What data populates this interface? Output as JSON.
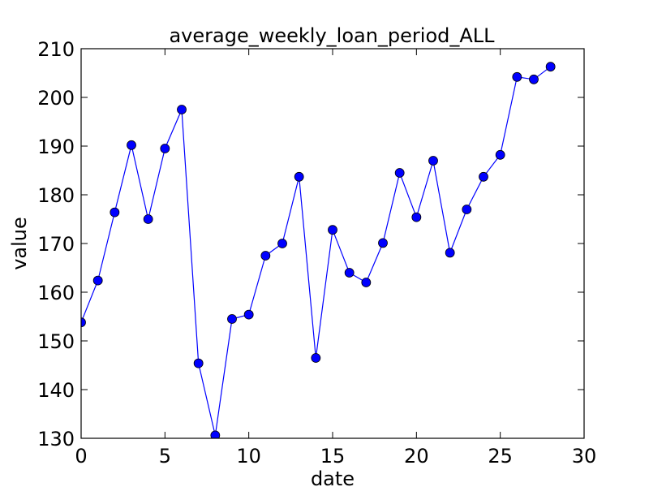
{
  "chart_data": {
    "type": "line",
    "title": "average_weekly_loan_period_ALL",
    "xlabel": "date",
    "ylabel": "value",
    "xlim": [
      0,
      30
    ],
    "ylim": [
      130,
      210
    ],
    "xticks": [
      0,
      5,
      10,
      15,
      20,
      25,
      30
    ],
    "yticks": [
      130,
      140,
      150,
      160,
      170,
      180,
      190,
      200,
      210
    ],
    "grid": false,
    "legend": "none",
    "series": [
      {
        "color": "#0000ff",
        "marker": "circle",
        "x": [
          0,
          1,
          2,
          3,
          4,
          5,
          6,
          7,
          8,
          9,
          10,
          11,
          12,
          13,
          14,
          15,
          16,
          17,
          18,
          19,
          20,
          21,
          22,
          23,
          24,
          25,
          26,
          27,
          28
        ],
        "y": [
          153.8,
          162.4,
          176.4,
          190.2,
          175.0,
          189.5,
          197.5,
          145.4,
          130.6,
          154.5,
          155.4,
          167.5,
          170.0,
          183.7,
          146.5,
          172.8,
          164.0,
          162.0,
          170.1,
          184.5,
          175.4,
          187.0,
          168.1,
          177.0,
          183.7,
          188.2,
          204.2,
          203.7,
          206.3
        ]
      }
    ]
  }
}
